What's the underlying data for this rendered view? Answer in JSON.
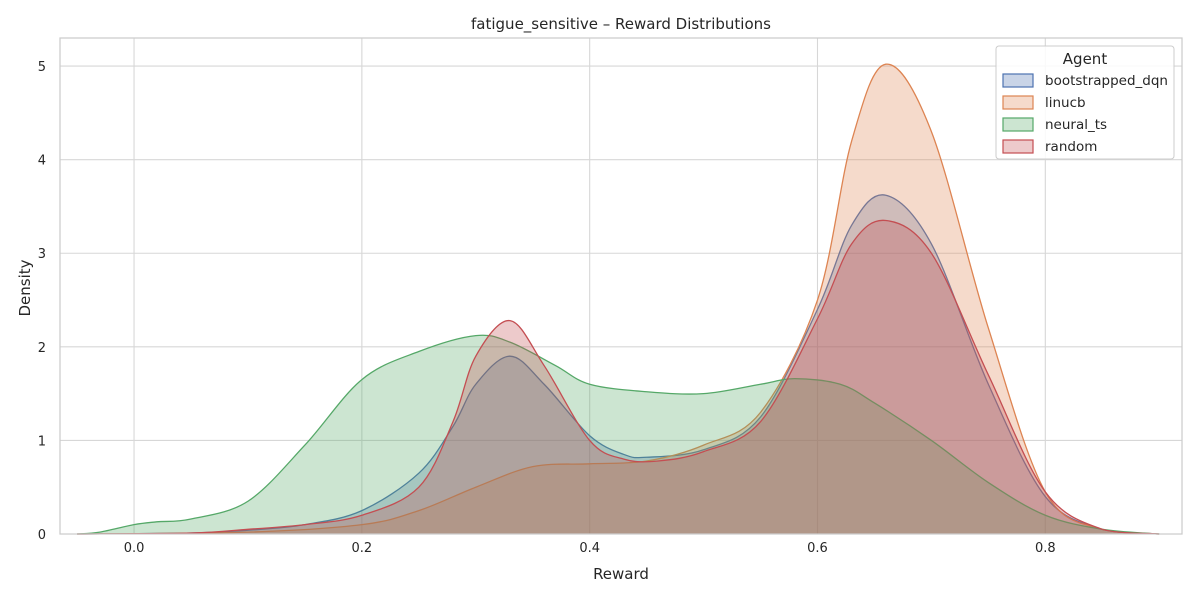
{
  "chart_data": {
    "type": "area",
    "kind": "kde",
    "title": "fatigue_sensitive – Reward Distributions",
    "xlabel": "Reward",
    "ylabel": "Density",
    "xlim": [
      -0.065,
      0.92
    ],
    "ylim": [
      0,
      5.3
    ],
    "xticks": [
      0.0,
      0.2,
      0.4,
      0.6,
      0.8
    ],
    "xtick_labels": [
      "0.0",
      "0.2",
      "0.4",
      "0.6",
      "0.8"
    ],
    "yticks": [
      0,
      1,
      2,
      3,
      4,
      5
    ],
    "ytick_labels": [
      "0",
      "1",
      "2",
      "3",
      "4",
      "5"
    ],
    "grid": true,
    "legend": {
      "title": "Agent",
      "placement": "top-right"
    },
    "series": [
      {
        "name": "bootstrapped_dqn",
        "color": "#4c72b0",
        "x": [
          -0.05,
          0.05,
          0.1,
          0.15,
          0.2,
          0.25,
          0.28,
          0.3,
          0.33,
          0.36,
          0.4,
          0.43,
          0.45,
          0.5,
          0.55,
          0.6,
          0.63,
          0.66,
          0.7,
          0.75,
          0.8,
          0.85,
          0.9
        ],
        "y": [
          0,
          0.01,
          0.04,
          0.1,
          0.25,
          0.65,
          1.15,
          1.6,
          1.9,
          1.6,
          1.05,
          0.85,
          0.82,
          0.9,
          1.25,
          2.4,
          3.3,
          3.62,
          3.1,
          1.6,
          0.4,
          0.05,
          0
        ]
      },
      {
        "name": "linucb",
        "color": "#dd8452",
        "x": [
          -0.05,
          0.1,
          0.2,
          0.25,
          0.3,
          0.35,
          0.4,
          0.45,
          0.5,
          0.55,
          0.6,
          0.63,
          0.66,
          0.7,
          0.75,
          0.8,
          0.85,
          0.9
        ],
        "y": [
          0,
          0.02,
          0.1,
          0.25,
          0.5,
          0.72,
          0.75,
          0.78,
          0.95,
          1.3,
          2.5,
          4.2,
          5.02,
          4.3,
          2.2,
          0.45,
          0.05,
          0
        ]
      },
      {
        "name": "neural_ts",
        "color": "#55a868",
        "x": [
          -0.05,
          -0.03,
          0.0,
          0.02,
          0.05,
          0.1,
          0.15,
          0.2,
          0.25,
          0.3,
          0.33,
          0.37,
          0.4,
          0.45,
          0.5,
          0.55,
          0.58,
          0.62,
          0.65,
          0.7,
          0.75,
          0.8,
          0.85,
          0.9
        ],
        "y": [
          0,
          0.02,
          0.1,
          0.13,
          0.16,
          0.35,
          0.95,
          1.65,
          1.95,
          2.12,
          2.05,
          1.8,
          1.6,
          1.52,
          1.5,
          1.6,
          1.66,
          1.6,
          1.4,
          1.0,
          0.55,
          0.2,
          0.05,
          0
        ]
      },
      {
        "name": "random",
        "color": "#c44e52",
        "x": [
          -0.05,
          0.05,
          0.1,
          0.15,
          0.2,
          0.25,
          0.28,
          0.3,
          0.33,
          0.36,
          0.4,
          0.43,
          0.46,
          0.5,
          0.55,
          0.6,
          0.63,
          0.66,
          0.7,
          0.75,
          0.8,
          0.85,
          0.9
        ],
        "y": [
          0,
          0.01,
          0.05,
          0.1,
          0.2,
          0.5,
          1.2,
          1.9,
          2.28,
          1.8,
          1.0,
          0.8,
          0.78,
          0.88,
          1.2,
          2.3,
          3.1,
          3.35,
          3.0,
          1.7,
          0.45,
          0.05,
          0
        ]
      }
    ]
  }
}
